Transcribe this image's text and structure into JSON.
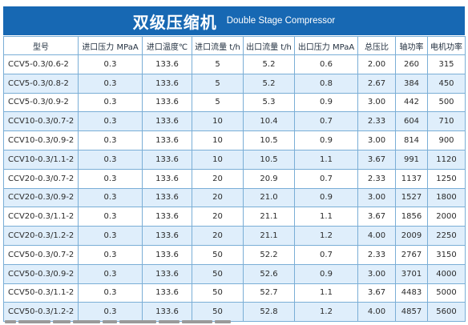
{
  "header": {
    "title_cn": "双级压缩机",
    "title_en": "Double Stage Compressor"
  },
  "colors": {
    "accent": "#1768b3",
    "row_alt": "#dfeefb",
    "border": "#7aaed6"
  },
  "table": {
    "columns": [
      "型号",
      "进口压力 MPaA",
      "进口温度℃",
      "进口流量 t/h",
      "出口流量 t/h",
      "出口压力 MPaA",
      "总压比",
      "轴功率",
      "电机功率"
    ],
    "rows": [
      [
        "CCV5-0.3/0.6-2",
        "0.3",
        "133.6",
        "5",
        "5.2",
        "0.6",
        "2.00",
        "260",
        "315"
      ],
      [
        "CCV5-0.3/0.8-2",
        "0.3",
        "133.6",
        "5",
        "5.2",
        "0.8",
        "2.67",
        "384",
        "450"
      ],
      [
        "CCV5-0.3/0.9-2",
        "0.3",
        "133.6",
        "5",
        "5.3",
        "0.9",
        "3.00",
        "442",
        "500"
      ],
      [
        "CCV10-0.3/0.7-2",
        "0.3",
        "133.6",
        "10",
        "10.4",
        "0.7",
        "2.33",
        "604",
        "710"
      ],
      [
        "CCV10-0.3/0.9-2",
        "0.3",
        "133.6",
        "10",
        "10.5",
        "0.9",
        "3.00",
        "814",
        "900"
      ],
      [
        "CCV10-0.3/1.1-2",
        "0.3",
        "133.6",
        "10",
        "10.5",
        "1.1",
        "3.67",
        "991",
        "1120"
      ],
      [
        "CCV20-0.3/0.7-2",
        "0.3",
        "133.6",
        "20",
        "20.9",
        "0.7",
        "2.33",
        "1137",
        "1250"
      ],
      [
        "CCV20-0.3/0.9-2",
        "0.3",
        "133.6",
        "20",
        "21.0",
        "0.9",
        "3.00",
        "1527",
        "1800"
      ],
      [
        "CCV20-0.3/1.1-2",
        "0.3",
        "133.6",
        "20",
        "21.1",
        "1.1",
        "3.67",
        "1856",
        "2000"
      ],
      [
        "CCV20-0.3/1.2-2",
        "0.3",
        "133.6",
        "20",
        "21.1",
        "1.2",
        "4.00",
        "2009",
        "2250"
      ],
      [
        "CCV50-0.3/0.7-2",
        "0.3",
        "133.6",
        "50",
        "52.2",
        "0.7",
        "2.33",
        "2767",
        "3150"
      ],
      [
        "CCV50-0.3/0.9-2",
        "0.3",
        "133.6",
        "50",
        "52.6",
        "0.9",
        "3.00",
        "3701",
        "4000"
      ],
      [
        "CCV50-0.3/1.1-2",
        "0.3",
        "133.6",
        "50",
        "52.7",
        "1.1",
        "3.67",
        "4483",
        "5000"
      ],
      [
        "CCV50-0.3/1.2-2",
        "0.3",
        "133.6",
        "50",
        "52.8",
        "1.2",
        "4.00",
        "4857",
        "5600"
      ]
    ]
  }
}
